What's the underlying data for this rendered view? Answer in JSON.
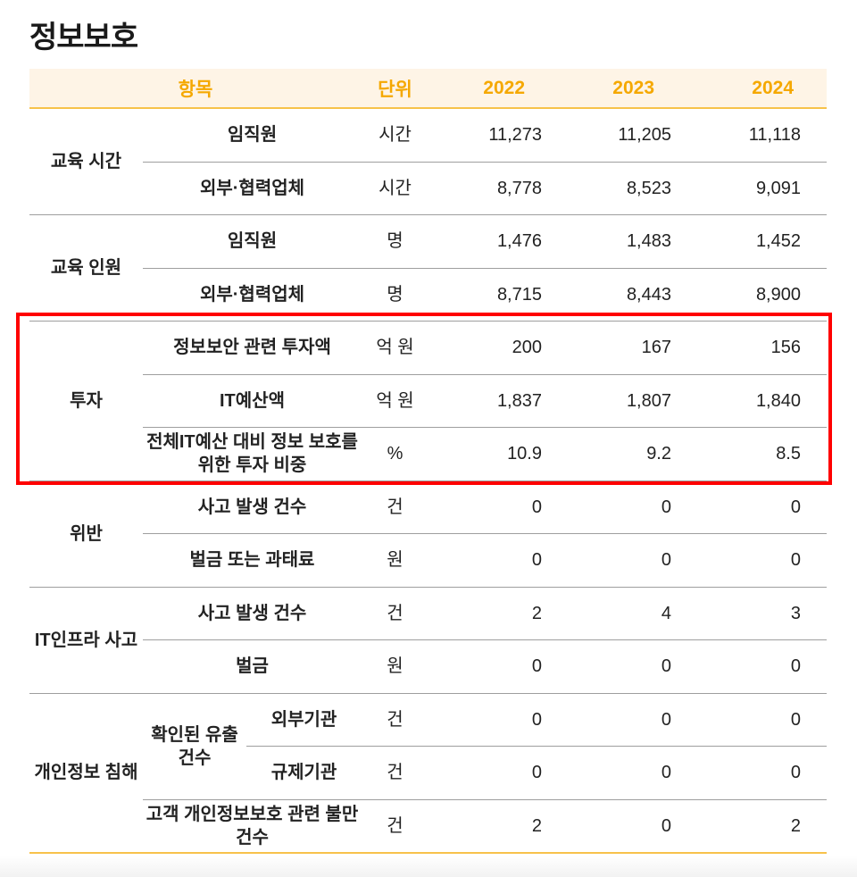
{
  "title": "정보보호",
  "header": {
    "item": "항목",
    "unit": "단위",
    "years": [
      "2022",
      "2023",
      "2024"
    ]
  },
  "colors": {
    "header_bg": "#fef4e6",
    "header_text": "#f5a800",
    "accent_line": "#f7c24a",
    "highlight_box": "#ff0000"
  },
  "rows": [
    {
      "group": "교육 시간",
      "item": "임직원",
      "unit": "시간",
      "values": [
        "11,273",
        "11,205",
        "11,118"
      ]
    },
    {
      "item": "외부·협력업체",
      "unit": "시간",
      "values": [
        "8,778",
        "8,523",
        "9,091"
      ]
    },
    {
      "group": "교육 인원",
      "item": "임직원",
      "unit": "명",
      "values": [
        "1,476",
        "1,483",
        "1,452"
      ]
    },
    {
      "item": "외부·협력업체",
      "unit": "명",
      "values": [
        "8,715",
        "8,443",
        "8,900"
      ]
    },
    {
      "group": "투자",
      "item": "정보보안 관련 투자액",
      "unit": "억 원",
      "values": [
        "200",
        "167",
        "156"
      ]
    },
    {
      "item": "IT예산액",
      "unit": "억 원",
      "values": [
        "1,837",
        "1,807",
        "1,840"
      ]
    },
    {
      "item": "전체IT예산 대비 정보 보호를 위한 투자 비중",
      "unit": "%",
      "values": [
        "10.9",
        "9.2",
        "8.5"
      ]
    },
    {
      "group": "위반",
      "item": "사고 발생 건수",
      "unit": "건",
      "values": [
        "0",
        "0",
        "0"
      ]
    },
    {
      "item": "벌금 또는 과태료",
      "unit": "원",
      "values": [
        "0",
        "0",
        "0"
      ]
    },
    {
      "group": "IT인프라 사고",
      "item": "사고 발생 건수",
      "unit": "건",
      "values": [
        "2",
        "4",
        "3"
      ]
    },
    {
      "item": "벌금",
      "unit": "원",
      "values": [
        "0",
        "0",
        "0"
      ]
    },
    {
      "group": "개인정보 침해",
      "subgroup": "확인된 유출 건수",
      "item": "외부기관",
      "unit": "건",
      "values": [
        "0",
        "0",
        "0"
      ]
    },
    {
      "item": "규제기관",
      "unit": "건",
      "values": [
        "0",
        "0",
        "0"
      ]
    },
    {
      "item": "고객 개인정보보호 관련 불만 건수",
      "unit": "건",
      "values": [
        "2",
        "0",
        "2"
      ]
    }
  ]
}
